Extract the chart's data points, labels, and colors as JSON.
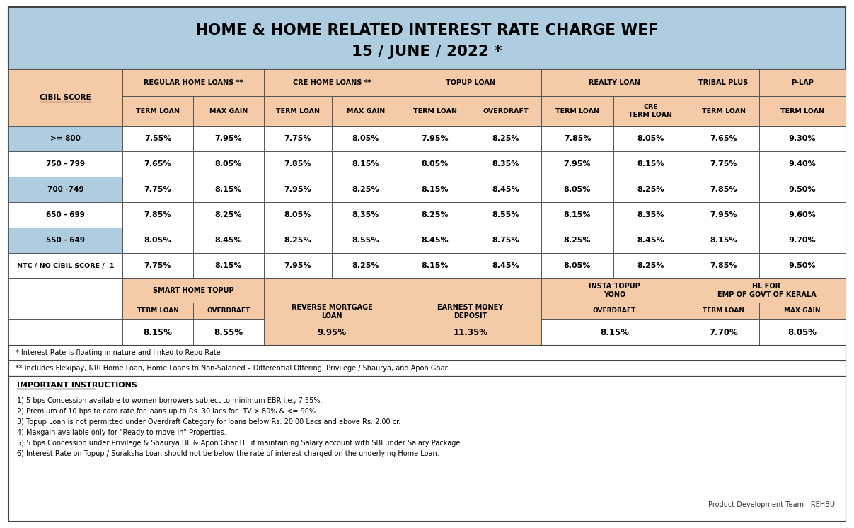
{
  "title_line1": "HOME & HOME RELATED INTEREST RATE CHARGE WEF",
  "title_line2": "15 / JUNE / 2022 *",
  "title_bg": "#aecde0",
  "header_bg": "#f5cba7",
  "light_blue_row": "#aecde0",
  "white_row": "#ffffff",
  "outer_bg": "#ffffff",
  "border_color": "#555555",
  "score_labels": [
    ">= 800",
    "750 - 799",
    "700 -749",
    "650 - 699",
    "550 - 649",
    "NTC / NO CIBIL SCORE / -1"
  ],
  "alt_colors": [
    "#aecde0",
    "#ffffff",
    "#aecde0",
    "#ffffff",
    "#aecde0",
    "#ffffff"
  ],
  "data_vals": [
    [
      "7.55%",
      "7.95%",
      "7.75%",
      "8.05%",
      "7.95%",
      "8.25%",
      "7.85%",
      "8.05%",
      "7.65%",
      "9.30%"
    ],
    [
      "7.65%",
      "8.05%",
      "7.85%",
      "8.15%",
      "8.05%",
      "8.35%",
      "7.95%",
      "8.15%",
      "7.75%",
      "9.40%"
    ],
    [
      "7.75%",
      "8.15%",
      "7.95%",
      "8.25%",
      "8.15%",
      "8.45%",
      "8.05%",
      "8.25%",
      "7.85%",
      "9.50%"
    ],
    [
      "7.85%",
      "8.25%",
      "8.05%",
      "8.35%",
      "8.25%",
      "8.55%",
      "8.15%",
      "8.35%",
      "7.95%",
      "9.60%"
    ],
    [
      "8.05%",
      "8.45%",
      "8.25%",
      "8.55%",
      "8.45%",
      "8.75%",
      "8.25%",
      "8.45%",
      "8.15%",
      "9.70%"
    ],
    [
      "7.75%",
      "8.15%",
      "7.95%",
      "8.25%",
      "8.15%",
      "8.45%",
      "8.05%",
      "8.25%",
      "7.85%",
      "9.50%"
    ]
  ],
  "footnote1": "* Interest Rate is floating in nature and linked to Repo Rate",
  "footnote2": "** Includes Flexipay, NRI Home Loan, Home Loans to Non-Salaried – Differential Offering, Privilege / Shaurya, and Apon Ghar",
  "important_title": "IMPORTANT INSTRUCTIONS",
  "instructions": [
    "1) 5 bps Concession available to women borrowers subject to minimum EBR i.e., 7.55%.",
    "2) Premium of 10 bps to card rate for loans up to Rs. 30 lacs for LTV > 80% & <= 90%.",
    "3) Topup Loan is not permitted under Overdraft Category for loans below Rs. 20.00 Lacs and above Rs. 2.00 cr.",
    "4) Maxgain available only for \"Ready to move-in\" Properties.",
    "5) 5 bps Concession under Privilege & Shaurya HL & Apon Ghar HL if maintaining Salary account with SBI under Salary Package.",
    "6) Interest Rate on Topup / Suraksha Loan should not be below the rate of interest charged on the underlying Home Loan."
  ],
  "product_team": "Product Development Team - REHBU"
}
